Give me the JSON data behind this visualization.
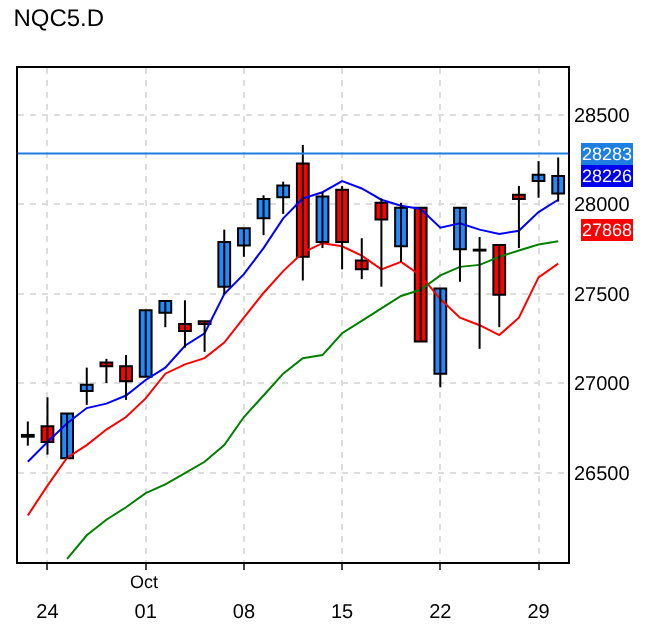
{
  "chart_data": {
    "type": "candlestick",
    "title": "NQC5.D",
    "categories": [
      null,
      "24",
      null,
      null,
      null,
      null,
      "01",
      null,
      null,
      null,
      null,
      "08",
      null,
      null,
      null,
      null,
      "15",
      null,
      null,
      null,
      null,
      "22",
      null,
      null,
      null,
      null,
      "29",
      null
    ],
    "ohlc": [
      [
        26700,
        26785,
        26650,
        26710
      ],
      [
        26758,
        26920,
        26600,
        26670
      ],
      [
        26580,
        26830,
        26580,
        26830
      ],
      [
        26955,
        27086,
        26878,
        26990
      ],
      [
        27115,
        27135,
        27000,
        27094
      ],
      [
        27094,
        27156,
        26906,
        27010
      ],
      [
        27035,
        27406,
        27035,
        27406
      ],
      [
        27393,
        27458,
        27312,
        27458
      ],
      [
        27330,
        27462,
        27198,
        27290
      ],
      [
        27345,
        27345,
        27174,
        27330
      ],
      [
        27538,
        27857,
        27497,
        27788
      ],
      [
        27768,
        27865,
        27705,
        27865
      ],
      [
        27920,
        28049,
        27826,
        28028
      ],
      [
        28038,
        28125,
        27945,
        28104
      ],
      [
        28226,
        28330,
        27573,
        27705
      ],
      [
        27788,
        28066,
        27754,
        28042
      ],
      [
        28080,
        28101,
        27635,
        27788
      ],
      [
        27684,
        27809,
        27580,
        27635
      ],
      [
        28007,
        28031,
        27538,
        27914
      ],
      [
        27764,
        28007,
        27677,
        27979
      ],
      [
        27979,
        27979,
        27232,
        27232
      ],
      [
        27052,
        27528,
        26976,
        27528
      ],
      [
        27747,
        27979,
        27566,
        27979
      ],
      [
        27745,
        27816,
        27191,
        27740
      ],
      [
        27771,
        27771,
        27312,
        27493
      ],
      [
        28052,
        28101,
        27754,
        28028
      ],
      [
        28129,
        28240,
        28035,
        28164
      ],
      [
        28059,
        28260,
        28014,
        28156
      ]
    ],
    "series": [
      {
        "type": "line",
        "color": "#0000ff",
        "values": [
          26560,
          26670,
          26775,
          26860,
          26885,
          26930,
          27017,
          27086,
          27208,
          27278,
          27497,
          27608,
          27754,
          27920,
          28031,
          28066,
          28128,
          28087,
          28024,
          27990,
          27972,
          27868,
          27893,
          27857,
          27833,
          27851,
          27955,
          28024
        ]
      },
      {
        "type": "line",
        "color": "#ff0000",
        "values": [
          26260,
          26427,
          26583,
          26653,
          26740,
          26810,
          26914,
          27052,
          27104,
          27139,
          27226,
          27365,
          27503,
          27625,
          27729,
          27781,
          27764,
          27712,
          27635,
          27677,
          27601,
          27469,
          27365,
          27323,
          27268,
          27365,
          27590,
          27667
        ]
      },
      {
        "type": "line",
        "color": "#008000",
        "values": [
          null,
          null,
          26017,
          26149,
          26236,
          26306,
          26385,
          26434,
          26497,
          26560,
          26653,
          26810,
          26930,
          27052,
          27139,
          27156,
          27278,
          27347,
          27417,
          27486,
          27521,
          27601,
          27649,
          27660,
          27705,
          27740,
          27774,
          27792
        ]
      }
    ],
    "ylim": [
      26000,
      28760
    ],
    "yticks": [
      26500,
      27000,
      27500,
      28000,
      28500
    ],
    "ref_lines": [
      {
        "axis": "y",
        "value": 28283,
        "label": "28283",
        "color": "#1e7fe0"
      }
    ],
    "annotations": [
      "28226",
      "27868",
      "Oct"
    ],
    "grid": true
  }
}
